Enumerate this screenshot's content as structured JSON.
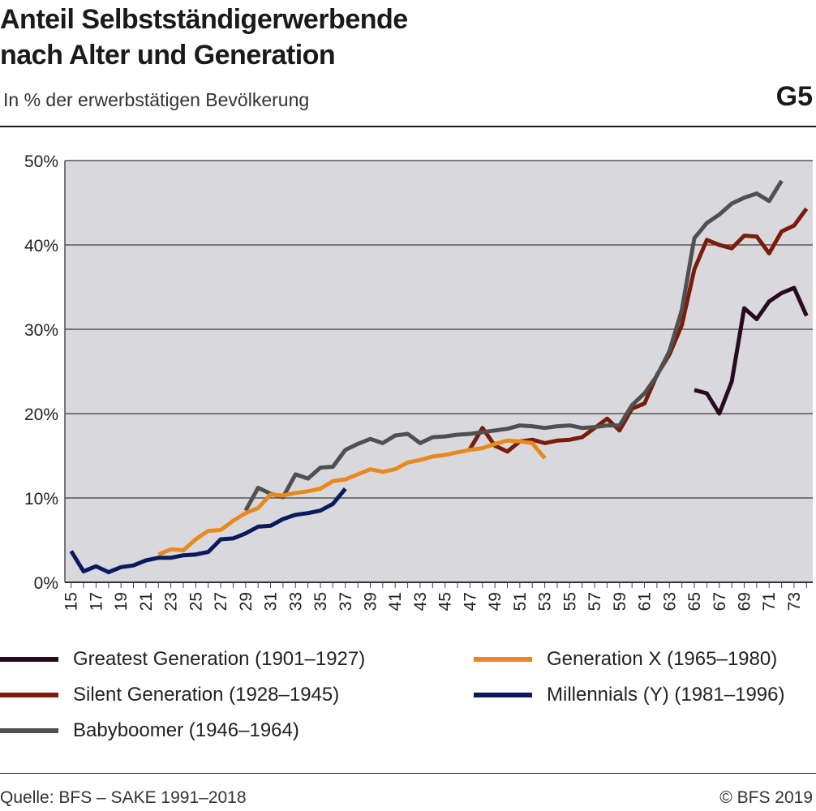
{
  "header": {
    "title_line1": "Anteil Selbstständigerwerbende",
    "title_line2": "nach Alter und Generation",
    "subtitle": "In % der erwerbstätigen Bevölkerung",
    "figure_number": "G5"
  },
  "footer": {
    "source": "Quelle: BFS – SAKE 1991–2018",
    "copyright": "© BFS 2019"
  },
  "chart_data": {
    "type": "line",
    "title": "Anteil Selbstständigerwerbende nach Alter und Generation",
    "subtitle": "In % der erwerbstätigen Bevölkerung",
    "xlabel": "",
    "ylabel": "",
    "xlim": [
      15,
      74
    ],
    "ylim": [
      0,
      50
    ],
    "y_ticks": [
      "0%",
      "10%",
      "20%",
      "30%",
      "40%",
      "50%"
    ],
    "x_ticks": [
      "15",
      "17",
      "19",
      "21",
      "23",
      "25",
      "27",
      "29",
      "31",
      "33",
      "35",
      "37",
      "39",
      "41",
      "43",
      "45",
      "47",
      "49",
      "51",
      "53",
      "55",
      "57",
      "59",
      "61",
      "63",
      "65",
      "67",
      "69",
      "71",
      "73"
    ],
    "grid": true,
    "legend_position": "bottom",
    "series": [
      {
        "name": "Greatest Generation (1901–1927)",
        "color": "#2a0a1e",
        "x": [
          65,
          66,
          67,
          68,
          69,
          70,
          71,
          72,
          73,
          74
        ],
        "y": [
          22.8,
          22.4,
          20.0,
          23.8,
          32.5,
          31.2,
          33.3,
          34.3,
          34.9,
          31.6
        ]
      },
      {
        "name": "Silent Generation (1928–1945)",
        "color": "#7a1c0a",
        "x": [
          47,
          48,
          49,
          50,
          51,
          52,
          53,
          54,
          55,
          56,
          57,
          58,
          59,
          60,
          61,
          62,
          63,
          64,
          65,
          66,
          67,
          68,
          69,
          70,
          71,
          72,
          73,
          74
        ],
        "y": [
          15.8,
          18.3,
          16.2,
          15.5,
          16.7,
          16.9,
          16.5,
          16.8,
          16.9,
          17.2,
          18.3,
          19.4,
          18.0,
          20.6,
          21.2,
          24.6,
          27.0,
          30.5,
          37.1,
          40.6,
          40.0,
          39.6,
          41.1,
          41.0,
          39.0,
          41.6,
          42.3,
          44.3
        ]
      },
      {
        "name": "Babyboomer (1946–1964)",
        "color": "#505050",
        "x": [
          29,
          30,
          31,
          32,
          33,
          34,
          35,
          36,
          37,
          38,
          39,
          40,
          41,
          42,
          43,
          44,
          45,
          46,
          47,
          48,
          49,
          50,
          51,
          52,
          53,
          54,
          55,
          56,
          57,
          58,
          59,
          60,
          61,
          62,
          63,
          64,
          65,
          66,
          67,
          68,
          69,
          70,
          71,
          72
        ],
        "y": [
          8.5,
          11.2,
          10.5,
          10.1,
          12.8,
          12.3,
          13.6,
          13.7,
          15.7,
          16.4,
          17.0,
          16.5,
          17.4,
          17.6,
          16.5,
          17.2,
          17.3,
          17.5,
          17.6,
          17.8,
          18.0,
          18.2,
          18.6,
          18.5,
          18.3,
          18.5,
          18.6,
          18.3,
          18.4,
          18.6,
          18.6,
          21.0,
          22.4,
          24.5,
          27.4,
          32.3,
          40.8,
          42.6,
          43.6,
          44.9,
          45.6,
          46.1,
          45.2,
          47.6
        ]
      },
      {
        "name": "Generation X (1965–1980)",
        "color": "#e8891e",
        "x": [
          22,
          23,
          24,
          25,
          26,
          27,
          28,
          29,
          30,
          31,
          32,
          33,
          34,
          35,
          36,
          37,
          38,
          39,
          40,
          41,
          42,
          43,
          44,
          45,
          46,
          47,
          48,
          49,
          50,
          51,
          52,
          53
        ],
        "y": [
          3.3,
          3.9,
          3.8,
          5.1,
          6.1,
          6.2,
          7.3,
          8.2,
          8.8,
          10.4,
          10.3,
          10.6,
          10.8,
          11.1,
          12.0,
          12.2,
          12.8,
          13.4,
          13.1,
          13.4,
          14.2,
          14.5,
          14.9,
          15.1,
          15.4,
          15.7,
          15.9,
          16.4,
          16.8,
          16.7,
          16.5,
          14.7
        ]
      },
      {
        "name": "Millennials (Y) (1981–1996)",
        "color": "#0b1a5e",
        "x": [
          15,
          16,
          17,
          18,
          19,
          20,
          21,
          22,
          23,
          24,
          25,
          26,
          27,
          28,
          29,
          30,
          31,
          32,
          33,
          34,
          35,
          36,
          37
        ],
        "y": [
          3.7,
          1.3,
          1.9,
          1.2,
          1.8,
          2.0,
          2.6,
          2.9,
          2.9,
          3.2,
          3.3,
          3.6,
          5.1,
          5.2,
          5.8,
          6.6,
          6.7,
          7.5,
          8.0,
          8.2,
          8.5,
          9.3,
          11.1
        ]
      }
    ]
  }
}
